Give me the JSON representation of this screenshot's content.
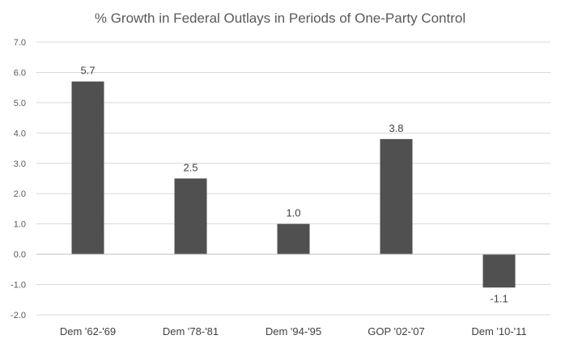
{
  "chart_data": {
    "type": "bar",
    "title": "% Growth in Federal Outlays in Periods of One-Party Control",
    "categories": [
      "Dem '62-'69",
      "Dem '78-'81",
      "Dem '94-'95",
      "GOP '02-'07",
      "Dem '10-'11"
    ],
    "values": [
      5.7,
      2.5,
      1.0,
      3.8,
      -1.1
    ],
    "data_labels": [
      "5.7",
      "2.5",
      "1.0",
      "3.8",
      "-1.1"
    ],
    "ylim": [
      -2.0,
      7.0
    ],
    "yticks": [
      "7.0",
      "6.0",
      "5.0",
      "4.0",
      "3.0",
      "2.0",
      "1.0",
      "0.0",
      "-1.0",
      "-2.0"
    ],
    "ytick_values": [
      7,
      6,
      5,
      4,
      3,
      2,
      1,
      0,
      -1,
      -2
    ],
    "xlabel": "",
    "ylabel": "",
    "grid": true,
    "bar_color": "#505050"
  }
}
